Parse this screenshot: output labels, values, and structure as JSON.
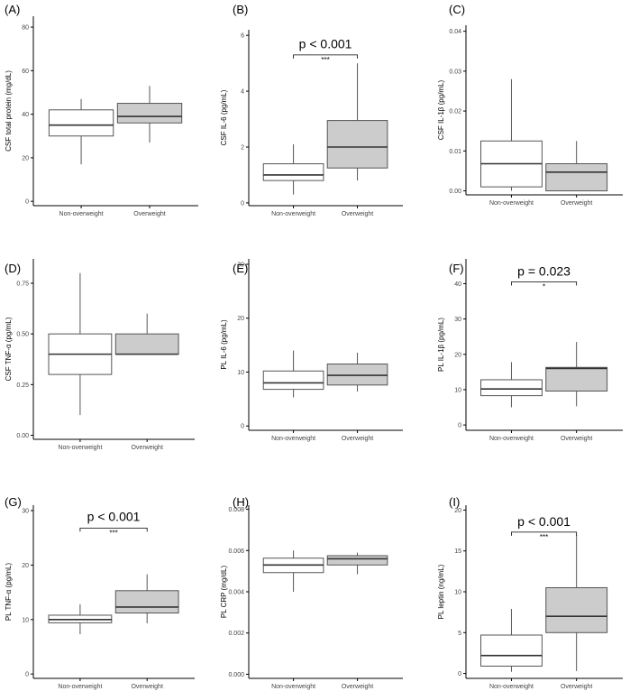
{
  "colors": {
    "axis": "#000000",
    "tick_text": "#444444",
    "box_stroke": "#555555",
    "median": "#333333",
    "non_overweight_fill": "#ffffff",
    "overweight_fill": "#cccccc"
  },
  "chart_data": [
    {
      "type": "boxplot",
      "panel": "(A)",
      "ylabel": "CSF total protein (mg/dL)",
      "ylim": [
        -2,
        85
      ],
      "yticks": [
        "0",
        "20",
        "40",
        "60",
        "80"
      ],
      "ytick_values": [
        0,
        20,
        40,
        60,
        80
      ],
      "categories": [
        "Non-overweight",
        "Overweight"
      ],
      "boxes": [
        {
          "group": "Non-overweight",
          "min": 17,
          "q1": 30,
          "median": 35,
          "q3": 42,
          "max": 47
        },
        {
          "group": "Overweight",
          "min": 27,
          "q1": 36,
          "median": 39,
          "q3": 45,
          "max": 53
        }
      ],
      "pvalue": null,
      "stars": null
    },
    {
      "type": "boxplot",
      "panel": "(B)",
      "ylabel": "CSF IL-6 (pg/mL)",
      "ylim": [
        -0.1,
        6.2
      ],
      "yticks": [
        "0",
        "2",
        "4",
        "6"
      ],
      "ytick_values": [
        0,
        2,
        4,
        6
      ],
      "categories": [
        "Non-overweight",
        "Overweight"
      ],
      "boxes": [
        {
          "group": "Non-overweight",
          "min": 0.3,
          "q1": 0.8,
          "median": 1.0,
          "q3": 1.4,
          "max": 2.1
        },
        {
          "group": "Overweight",
          "min": 0.8,
          "q1": 1.25,
          "median": 2.0,
          "q3": 2.95,
          "max": 5.0
        }
      ],
      "pvalue": "p < 0.001",
      "stars": "***",
      "bracket_y": 5.3,
      "pvalue_y": 5.7
    },
    {
      "type": "boxplot",
      "panel": "(C)",
      "ylabel": "CSF IL-1β (pg/mL)",
      "ylim": [
        -0.001,
        0.0415
      ],
      "yticks": [
        "0.00",
        "0.01",
        "0.02",
        "0.03",
        "0.04"
      ],
      "ytick_values": [
        0,
        0.01,
        0.02,
        0.03,
        0.04
      ],
      "categories": [
        "Non-overweight",
        "Overweight"
      ],
      "boxes": [
        {
          "group": "Non-overweight",
          "min": 0.0,
          "q1": 0.001,
          "median": 0.0068,
          "q3": 0.0125,
          "max": 0.028
        },
        {
          "group": "Overweight",
          "min": 0.0,
          "q1": 0.0,
          "median": 0.0047,
          "q3": 0.0068,
          "max": 0.0125
        }
      ],
      "pvalue": null,
      "stars": null
    },
    {
      "type": "boxplot",
      "panel": "(D)",
      "ylabel": "CSF TNF-α (pg/mL)",
      "ylim": [
        -0.02,
        0.87
      ],
      "yticks": [
        "0.00",
        "0.25",
        "0.50",
        "0.75"
      ],
      "ytick_values": [
        0,
        0.25,
        0.5,
        0.75
      ],
      "categories": [
        "Non-overweight",
        "Overweight"
      ],
      "boxes": [
        {
          "group": "Non-overweight",
          "min": 0.1,
          "q1": 0.3,
          "median": 0.4,
          "q3": 0.5,
          "max": 0.8
        },
        {
          "group": "Overweight",
          "min": 0.4,
          "q1": 0.4,
          "median": 0.4,
          "q3": 0.5,
          "max": 0.6
        }
      ],
      "pvalue": null,
      "stars": null
    },
    {
      "type": "boxplot",
      "panel": "(E)",
      "ylabel": "PL IL-6 (pg/mL)",
      "ylim": [
        -0.8,
        31
      ],
      "yticks": [
        "0",
        "10",
        "20",
        "30"
      ],
      "ytick_values": [
        0,
        10,
        20,
        30
      ],
      "categories": [
        "Non-overweight",
        "Overweight"
      ],
      "boxes": [
        {
          "group": "Non-overweight",
          "min": 5.3,
          "q1": 6.8,
          "median": 8.0,
          "q3": 10.2,
          "max": 14.0
        },
        {
          "group": "Overweight",
          "min": 6.4,
          "q1": 7.6,
          "median": 9.4,
          "q3": 11.5,
          "max": 13.6
        }
      ],
      "pvalue": null,
      "stars": null
    },
    {
      "type": "boxplot",
      "panel": "(F)",
      "ylabel": "PL IL-1β (pg/mL)",
      "ylim": [
        -1.5,
        47
      ],
      "yticks": [
        "0",
        "10",
        "20",
        "30",
        "40"
      ],
      "ytick_values": [
        0,
        10,
        20,
        30,
        40
      ],
      "categories": [
        "Non-overweight",
        "Overweight"
      ],
      "boxes": [
        {
          "group": "Non-overweight",
          "min": 5.0,
          "q1": 8.3,
          "median": 10.2,
          "q3": 12.8,
          "max": 17.8
        },
        {
          "group": "Overweight",
          "min": 5.3,
          "q1": 9.6,
          "median": 16.0,
          "q3": 16.3,
          "max": 23.5
        }
      ],
      "pvalue": "p = 0.023",
      "stars": "*",
      "bracket_y": 40.5,
      "pvalue_y": 43.5
    },
    {
      "type": "boxplot",
      "panel": "(G)",
      "ylabel": "PL TNF-α (pg/mL)",
      "ylim": [
        -0.8,
        31
      ],
      "yticks": [
        "0",
        "10",
        "20",
        "30"
      ],
      "ytick_values": [
        0,
        10,
        20,
        30
      ],
      "categories": [
        "Non-overweight",
        "Overweight"
      ],
      "boxes": [
        {
          "group": "Non-overweight",
          "min": 7.3,
          "q1": 9.4,
          "median": 10.0,
          "q3": 10.8,
          "max": 12.8
        },
        {
          "group": "Overweight",
          "min": 9.3,
          "q1": 11.2,
          "median": 12.3,
          "q3": 15.3,
          "max": 18.3
        }
      ],
      "pvalue": "p < 0.001",
      "stars": "***",
      "bracket_y": 26.8,
      "pvalue_y": 28.9
    },
    {
      "type": "boxplot",
      "panel": "(H)",
      "ylabel": "PL CRP (mg/dL)",
      "ylim": [
        -0.0002,
        0.0082
      ],
      "yticks": [
        "0.000",
        "0.002",
        "0.004",
        "0.006",
        "0.008"
      ],
      "ytick_values": [
        0,
        0.002,
        0.004,
        0.006,
        0.008
      ],
      "categories": [
        "Non-overweight",
        "Overweight"
      ],
      "boxes": [
        {
          "group": "Non-overweight",
          "min": 0.004,
          "q1": 0.00493,
          "median": 0.0053,
          "q3": 0.00563,
          "max": 0.006
        },
        {
          "group": "Overweight",
          "min": 0.00485,
          "q1": 0.0053,
          "median": 0.0056,
          "q3": 0.00575,
          "max": 0.0059
        }
      ],
      "pvalue": null,
      "stars": null
    },
    {
      "type": "boxplot",
      "panel": "(I)",
      "ylabel": "PL leptin (ng/mL)",
      "ylim": [
        -0.6,
        20.6
      ],
      "yticks": [
        "0",
        "5",
        "10",
        "15",
        "20"
      ],
      "ytick_values": [
        0,
        5,
        10,
        15,
        20
      ],
      "categories": [
        "Non-overweight",
        "Overweight"
      ],
      "boxes": [
        {
          "group": "Non-overweight",
          "min": 0.2,
          "q1": 0.9,
          "median": 2.2,
          "q3": 4.7,
          "max": 7.9
        },
        {
          "group": "Overweight",
          "min": 0.3,
          "q1": 5.0,
          "median": 7.0,
          "q3": 10.5,
          "max": 17.0
        }
      ],
      "pvalue": "p < 0.001",
      "stars": "***",
      "bracket_y": 17.3,
      "pvalue_y": 18.6
    }
  ]
}
